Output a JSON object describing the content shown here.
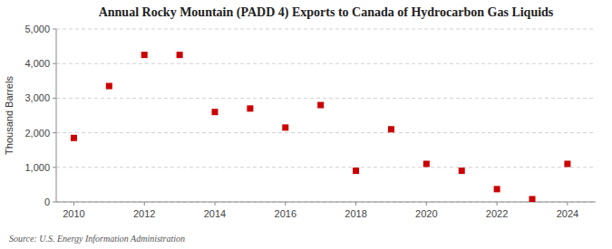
{
  "chart_data": {
    "type": "scatter",
    "title": "Annual Rocky Mountain (PADD 4) Exports to Canada of Hydrocarbon Gas Liquids",
    "ylabel": "Thousand Barrels",
    "source": "Source: U.S. Energy Information Administration",
    "x": [
      2010,
      2011,
      2012,
      2013,
      2014,
      2015,
      2016,
      2017,
      2018,
      2019,
      2020,
      2021,
      2022,
      2023,
      2024
    ],
    "values": [
      1850,
      3350,
      4250,
      4250,
      2600,
      2700,
      2150,
      2800,
      900,
      2100,
      1100,
      900,
      370,
      80,
      1100
    ],
    "color": "#cc0000",
    "marker": "square",
    "grid": true,
    "xlim": [
      2009.5,
      2024.8
    ],
    "xticks": [
      2010,
      2012,
      2014,
      2016,
      2018,
      2020,
      2022,
      2024
    ],
    "ylim": [
      0,
      5000
    ],
    "yticks": [
      0,
      {
        "value": 1000,
        "label": "1,000"
      },
      {
        "value": 2000,
        "label": "2,000"
      },
      {
        "value": 3000,
        "label": "3,000"
      },
      {
        "value": 4000,
        "label": "4,000"
      },
      {
        "value": 5000,
        "label": "5,000"
      }
    ]
  }
}
